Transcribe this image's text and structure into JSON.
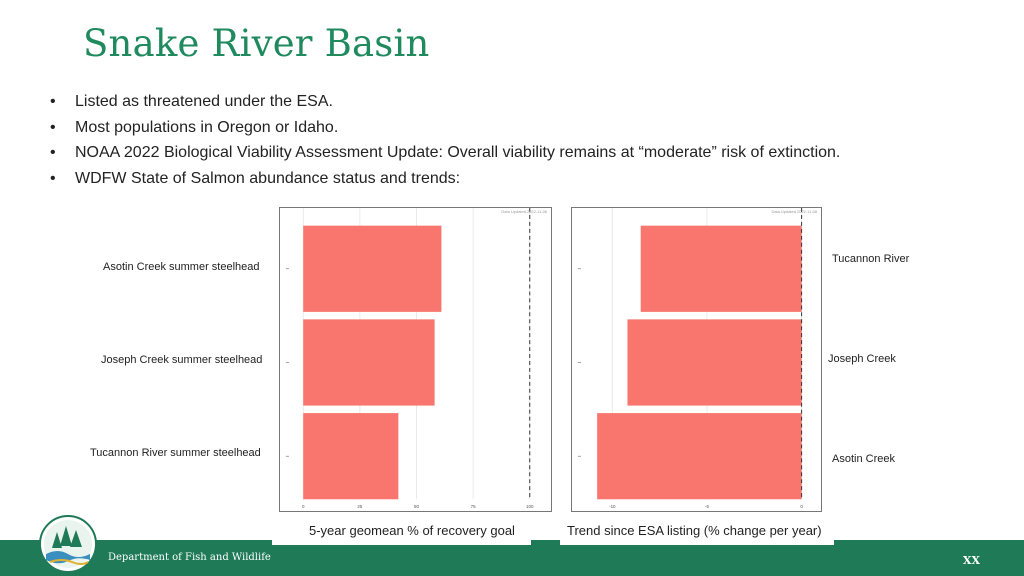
{
  "slide": {
    "title": "Snake River Basin",
    "bullets": [
      "Listed as threatened under the ESA.",
      "Most populations in Oregon or Idaho.",
      "NOAA 2022 Biological Viability Assessment Update: Overall viability remains at “moderate” risk of extinction.",
      "WDFW State of Salmon abundance status and trends:"
    ],
    "footer": {
      "org": "Department of Fish and Wildlife",
      "page": "XX"
    }
  },
  "colors": {
    "title": "#1e8a5e",
    "bar": "#f8766d",
    "footer": "#1e7a57"
  },
  "chart_data": [
    {
      "type": "bar",
      "orientation": "horizontal",
      "categories": [
        "Asotin Creek summer steelhead",
        "Joseph Creek summer steelhead",
        "Tucannon River summer steelhead"
      ],
      "values": [
        61,
        58,
        42
      ],
      "xlabel": "5-year geomean % of recovery goal",
      "xticks": [
        0,
        25,
        50,
        75,
        100
      ],
      "xlim": [
        -5,
        105
      ],
      "reference_line": 100,
      "corner_note": "Data Updated 2022-11-08",
      "grid": true
    },
    {
      "type": "bar",
      "orientation": "horizontal",
      "categories": [
        "Tucannon River",
        "Joseph Creek",
        "Asotin Creek"
      ],
      "values": [
        -8.5,
        -9.2,
        -10.8
      ],
      "xlabel": "Trend since ESA listing (% change per year)",
      "xticks": [
        -10,
        -5,
        0
      ],
      "xlim": [
        -11.5,
        0.5
      ],
      "reference_line": 0,
      "corner_note": "Data Updated 2022-11-08",
      "grid": true
    }
  ]
}
